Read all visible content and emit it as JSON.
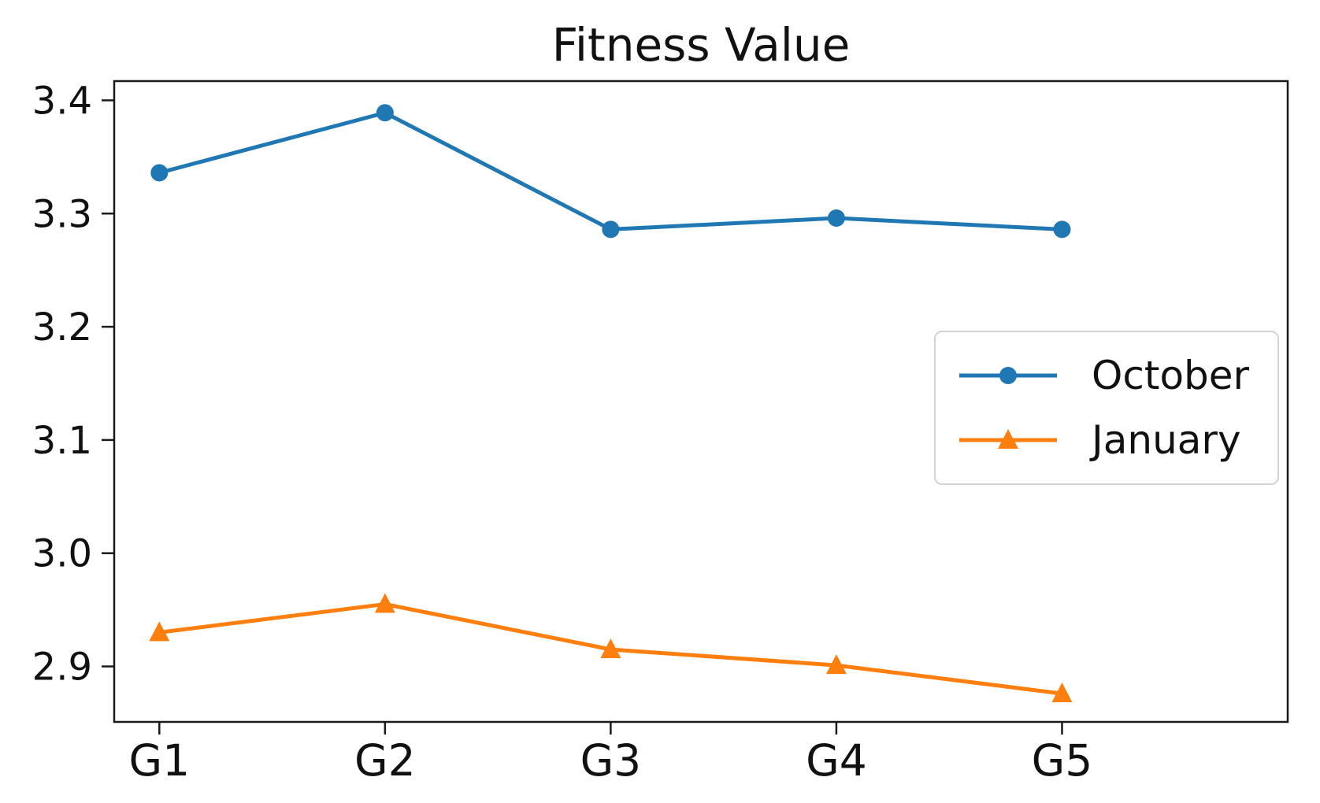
{
  "chart_data": {
    "type": "line",
    "title": "Fitness Value",
    "xlabel": "",
    "ylabel": "",
    "categories": [
      "G1",
      "G2",
      "G3",
      "G4",
      "G5"
    ],
    "series": [
      {
        "name": "October",
        "color": "#1f77b4",
        "marker": "circle",
        "values": [
          3.336,
          3.389,
          3.286,
          3.296,
          3.286
        ]
      },
      {
        "name": "January",
        "color": "#ff7f0e",
        "marker": "triangle-up",
        "values": [
          2.93,
          2.955,
          2.915,
          2.901,
          2.876
        ]
      }
    ],
    "yticks": [
      2.9,
      3.0,
      3.1,
      3.2,
      3.3,
      3.4
    ],
    "ytick_labels": [
      "2.9",
      "3.0",
      "3.1",
      "3.2",
      "3.3",
      "3.4"
    ],
    "ylim": [
      2.851,
      3.417
    ],
    "xlim": [
      -0.2,
      5.0
    ],
    "grid": false,
    "legend_position": "center right",
    "axis_color": "#1a1a1a"
  }
}
